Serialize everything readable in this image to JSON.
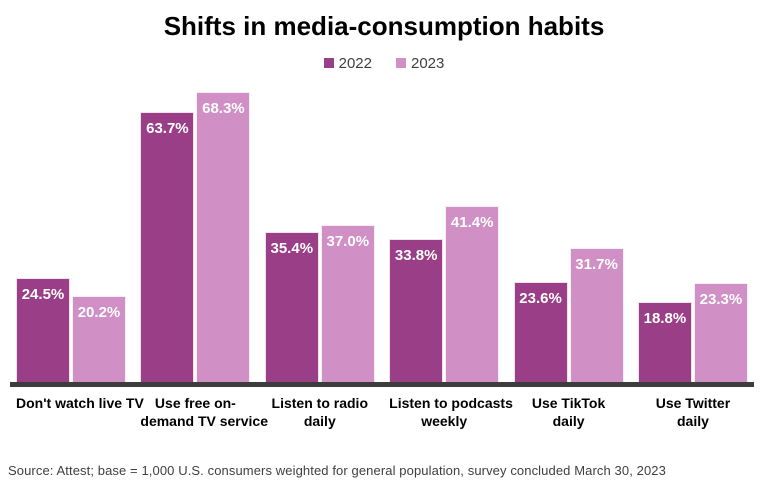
{
  "title": "Shifts in media-consumption habits",
  "source": "Source: Attest; base = 1,000 U.S. consumers weighted for general population, survey concluded March 30, 2023",
  "colors": {
    "series_2022": "#9A3E87",
    "series_2023": "#D08FC5",
    "axis_line": "#3d3d3d",
    "value_label_text": "#ffffff"
  },
  "legend": {
    "position": "top-center",
    "items": [
      {
        "label": "2022",
        "color": "#9A3E87"
      },
      {
        "label": "2023",
        "color": "#D08FC5"
      }
    ]
  },
  "chart_data": {
    "type": "bar",
    "title": "Shifts in media-consumption habits",
    "xlabel": "",
    "ylabel": "",
    "ylim": [
      0,
      70
    ],
    "grid": false,
    "value_suffix": "%",
    "categories": [
      "Don't watch live TV",
      "Use free on-demand TV service",
      "Listen to radio daily",
      "Listen to podcasts weekly",
      "Use TikTok daily",
      "Use Twitter daily"
    ],
    "category_label_lines": [
      [
        "Don't watch live TV"
      ],
      [
        "Use free on-",
        "demand TV service"
      ],
      [
        "Listen to radio",
        "daily"
      ],
      [
        "Listen to podcasts",
        "weekly"
      ],
      [
        "Use TikTok",
        "daily"
      ],
      [
        "Use Twitter",
        "daily"
      ]
    ],
    "series": [
      {
        "name": "2022",
        "color": "#9A3E87",
        "values": [
          24.5,
          63.7,
          35.4,
          33.8,
          23.6,
          18.8
        ]
      },
      {
        "name": "2023",
        "color": "#D08FC5",
        "values": [
          20.2,
          68.3,
          37.0,
          41.4,
          31.7,
          23.3
        ]
      }
    ]
  }
}
